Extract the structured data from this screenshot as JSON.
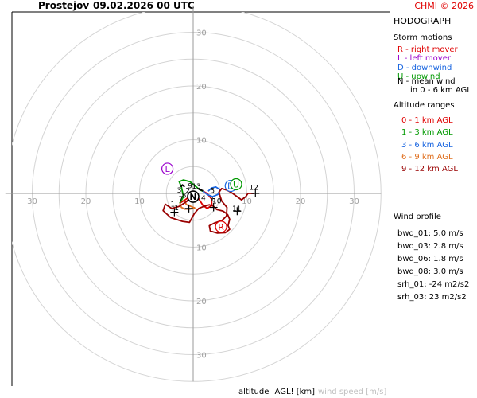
{
  "header": {
    "location": "Prostejov",
    "datetime": "09.02.2026 00 UTC",
    "credit": "CHMI © 2026"
  },
  "panel": {
    "title": "HODOGRAPH",
    "storm_heading": "Storm motions",
    "storm_items": [
      {
        "text": "R - right mover",
        "color": "#e00000"
      },
      {
        "text": "L - left mover",
        "color": "#9900cc"
      },
      {
        "text": "D - downwind",
        "color": "#1a66e0"
      },
      {
        "text": "U - upwind",
        "color": "#009900"
      },
      {
        "text": "N - mean wind",
        "color": "#000000"
      },
      {
        "text": "in 0 - 6 km AGL",
        "color": "#000000"
      }
    ],
    "alt_heading": "Altitude ranges",
    "alt_items": [
      {
        "text": "0 - 1 km AGL",
        "color": "#e00000"
      },
      {
        "text": "1 - 3 km AGL",
        "color": "#009900"
      },
      {
        "text": "3 - 6 km AGL",
        "color": "#1a66e0"
      },
      {
        "text": "6 - 9 km AGL",
        "color": "#e07020"
      },
      {
        "text": "9 - 12 km AGL",
        "color": "#990000"
      }
    ],
    "wind_heading": "Wind profile",
    "wind_items": [
      "bwd_01: 5.0 m/s",
      "bwd_03: 2.8 m/s",
      "bwd_06: 1.8 m/s",
      "bwd_08: 3.0 m/s"
    ],
    "srh_items": [
      "srh_01: -24 m2/s2",
      "srh_03: 23 m2/s2"
    ]
  },
  "footer": {
    "altitude_label": "altitude !AGL! [km]",
    "speed_label": "wind speed [m/s]"
  },
  "chart_data": {
    "type": "line",
    "xlim": [
      -35,
      35
    ],
    "ylim": [
      -35,
      35
    ],
    "rings": [
      5,
      10,
      15,
      20,
      25,
      30,
      35
    ],
    "x_ticks": [
      -30,
      -20,
      -10,
      10,
      20,
      30
    ],
    "y_ticks": [
      -30,
      -20,
      -10,
      10,
      20,
      30
    ],
    "x_tick_labels": [
      "30",
      "20",
      "10",
      "10",
      "20",
      "30"
    ],
    "y_tick_labels": [
      "30",
      "20",
      "10",
      "10",
      "20",
      "30"
    ],
    "grid": true,
    "series": [
      {
        "color": "#e00000",
        "points": [
          [
            -2.5,
            -1.8
          ],
          [
            -1.5,
            -1.2
          ],
          [
            -0.6,
            -0.5
          ],
          [
            0.0,
            0.0
          ],
          [
            0.8,
            -0.6
          ],
          [
            1.8,
            -2.2
          ],
          [
            2.6,
            -2.8
          ],
          [
            3.5,
            -2.2
          ],
          [
            3.4,
            -1.0
          ],
          [
            2.6,
            0.0
          ],
          [
            1.5,
            0.6
          ]
        ]
      },
      {
        "color": "#009900",
        "points": [
          [
            -2.5,
            -1.8
          ],
          [
            -1.8,
            -0.6
          ],
          [
            -2.2,
            1.2
          ],
          [
            -2.6,
            2.2
          ],
          [
            -1.8,
            2.5
          ],
          [
            -0.6,
            2.2
          ],
          [
            0.6,
            1.2
          ],
          [
            1.2,
            0.7
          ],
          [
            1.8,
            0.4
          ]
        ]
      },
      {
        "color": "#1a66e0",
        "points": [
          [
            1.8,
            0.4
          ],
          [
            2.6,
            -0.2
          ],
          [
            3.6,
            -0.6
          ],
          [
            4.6,
            -0.2
          ],
          [
            5.0,
            0.7
          ],
          [
            4.2,
            1.2
          ],
          [
            3.4,
            1.0
          ],
          [
            2.8,
            0.4
          ]
        ]
      },
      {
        "color": "#e07020",
        "points": [
          [
            -2.5,
            -1.8
          ],
          [
            -2.2,
            -2.6
          ],
          [
            -1.6,
            -2.9
          ],
          [
            -0.6,
            -2.9
          ],
          [
            0.3,
            -2.7
          ],
          [
            -1.2,
            -2.1
          ],
          [
            -1.9,
            -1.2
          ]
        ]
      },
      {
        "color": "#990000",
        "points": [
          [
            -0.5,
            -0.6
          ],
          [
            -1.2,
            -1.5
          ],
          [
            -2.6,
            -2.4
          ],
          [
            -4.0,
            -2.8
          ],
          [
            -5.2,
            -2.0
          ],
          [
            -5.6,
            -3.2
          ],
          [
            -4.2,
            -4.5
          ],
          [
            -2.0,
            -5.2
          ],
          [
            -0.7,
            -5.4
          ],
          [
            0.2,
            -3.8
          ],
          [
            1.0,
            -2.8
          ],
          [
            2.0,
            -2.4
          ],
          [
            3.0,
            -2.1
          ],
          [
            3.8,
            -2.4
          ],
          [
            4.4,
            -3.0
          ],
          [
            5.6,
            -3.3
          ],
          [
            6.4,
            -3.9
          ],
          [
            6.8,
            -4.8
          ],
          [
            6.5,
            -6.0
          ],
          [
            6.8,
            -6.7
          ],
          [
            6.0,
            -7.3
          ],
          [
            4.5,
            -7.4
          ],
          [
            3.2,
            -7.0
          ],
          [
            3.0,
            -6.0
          ],
          [
            4.0,
            -5.5
          ],
          [
            5.4,
            -5.0
          ],
          [
            6.2,
            -4.2
          ],
          [
            6.3,
            -2.6
          ],
          [
            5.3,
            -1.4
          ],
          [
            4.8,
            0.2
          ],
          [
            5.3,
            0.9
          ],
          [
            6.3,
            0.6
          ],
          [
            7.2,
            0.1
          ],
          [
            8.2,
            -0.6
          ],
          [
            9.0,
            -1.2
          ],
          [
            9.8,
            -0.6
          ],
          [
            10.2,
            0.0
          ],
          [
            11.4,
            0.0
          ]
        ]
      },
      {
        "color": "#000000",
        "points": [
          [
            -2.3,
            1.2
          ],
          [
            -2.0,
            1.6
          ],
          [
            -1.6,
            1.2
          ]
        ]
      },
      {
        "color": "#000000",
        "points": [
          [
            1.0,
            0.8
          ],
          [
            1.8,
            0.5
          ]
        ]
      }
    ],
    "altitude_labels": [
      {
        "text": "0",
        "x": 0.2,
        "y": -0.7
      },
      {
        "text": "1",
        "x": -3.1,
        "y": -2.7
      },
      {
        "text": "2",
        "x": -1.0,
        "y": 0.5
      },
      {
        "text": "3",
        "x": -2.6,
        "y": 0.6
      },
      {
        "text": "4",
        "x": 1.9,
        "y": -0.8
      },
      {
        "text": "5",
        "x": 3.6,
        "y": 0.5
      },
      {
        "text": "6",
        "x": 3.8,
        "y": -1.1
      },
      {
        "text": "7",
        "x": -2.3,
        "y": -1.0
      },
      {
        "text": "8",
        "x": -1.7,
        "y": -0.4
      },
      {
        "text": "9",
        "x": -0.6,
        "y": 1.4
      },
      {
        "text": "10",
        "x": 4.4,
        "y": -1.4
      },
      {
        "text": "11",
        "x": 8.1,
        "y": -2.8
      },
      {
        "text": "12",
        "x": 11.3,
        "y": 1.1
      },
      {
        "text": "13",
        "x": 0.6,
        "y": 1.3
      },
      {
        "text": "1",
        "x": -3.8,
        "y": -2.0
      }
    ],
    "crosses": [
      [
        -3.5,
        -3.5
      ],
      [
        -0.8,
        -2.8
      ],
      [
        3.8,
        -2.6
      ],
      [
        8.2,
        -3.3
      ],
      [
        11.6,
        0.0
      ]
    ],
    "storm_markers": [
      {
        "label": "N",
        "x": 0.0,
        "y": -0.6,
        "color": "#000000"
      },
      {
        "label": "L",
        "x": -4.8,
        "y": 4.6,
        "color": "#9900cc"
      },
      {
        "label": "R",
        "x": 5.2,
        "y": -6.2,
        "color": "#e00000"
      },
      {
        "label": "D",
        "x": 7.0,
        "y": 1.4,
        "color": "#1a66e0"
      },
      {
        "label": "U",
        "x": 8.0,
        "y": 1.7,
        "color": "#009900"
      }
    ]
  }
}
